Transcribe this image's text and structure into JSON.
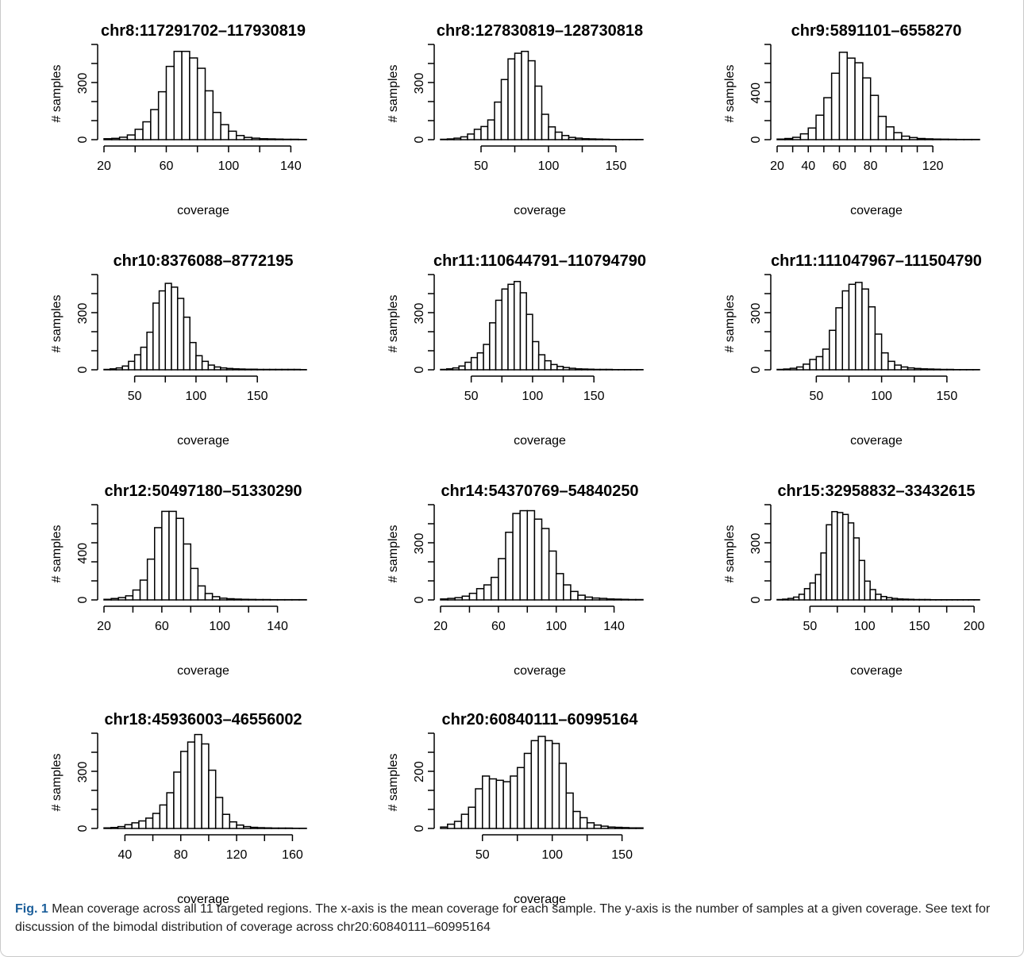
{
  "chart_data": [
    {
      "type": "bar",
      "title": "chr8:117291702–117930819",
      "xlabel": "coverage",
      "ylabel": "# samples",
      "x_range": [
        20,
        150
      ],
      "x_ticks": [
        20,
        60,
        100,
        140
      ],
      "y_ticks": [
        0,
        300
      ],
      "y_tick_labels": [
        "0",
        "300"
      ],
      "y_max": 490,
      "bin_width": 5,
      "bin_start": 20,
      "values": [
        5,
        7,
        13,
        25,
        55,
        95,
        160,
        255,
        390,
        470,
        470,
        435,
        380,
        260,
        145,
        80,
        45,
        22,
        12,
        8,
        5,
        4,
        3,
        2,
        2,
        1
      ]
    },
    {
      "type": "bar",
      "title": "chr8:127830819–128730818",
      "xlabel": "coverage",
      "ylabel": "# samples",
      "x_range": [
        20,
        170
      ],
      "x_ticks": [
        50,
        100,
        150
      ],
      "y_ticks": [
        0,
        300
      ],
      "y_tick_labels": [
        "0",
        "300"
      ],
      "y_max": 490,
      "bin_width": 5,
      "bin_start": 20,
      "values": [
        2,
        4,
        8,
        15,
        30,
        55,
        70,
        105,
        200,
        320,
        430,
        460,
        470,
        420,
        285,
        135,
        68,
        40,
        22,
        12,
        8,
        5,
        4,
        3,
        2,
        1,
        1,
        1,
        1,
        1
      ]
    },
    {
      "type": "bar",
      "title": "chr9:5891101–6558270",
      "xlabel": "coverage",
      "ylabel": "# samples",
      "x_range": [
        20,
        150
      ],
      "x_ticks": [
        20,
        40,
        60,
        80,
        120
      ],
      "y_ticks": [
        0,
        400
      ],
      "y_tick_labels": [
        "0",
        "400"
      ],
      "y_max": 790,
      "bin_width": 5,
      "bin_start": 20,
      "values": [
        5,
        10,
        20,
        50,
        100,
        210,
        360,
        570,
        750,
        700,
        660,
        530,
        380,
        200,
        110,
        60,
        30,
        18,
        10,
        7,
        5,
        4,
        3,
        2,
        2,
        2
      ]
    },
    {
      "type": "bar",
      "title": "chr10:8376088–8772195",
      "xlabel": "coverage",
      "ylabel": "# samples",
      "x_range": [
        25,
        190
      ],
      "x_ticks": [
        50,
        100,
        150
      ],
      "y_ticks": [
        0,
        300
      ],
      "y_tick_labels": [
        "0",
        "300"
      ],
      "y_max": 490,
      "bin_width": 5,
      "bin_start": 25,
      "values": [
        2,
        5,
        10,
        20,
        45,
        80,
        120,
        200,
        355,
        420,
        460,
        440,
        380,
        280,
        145,
        75,
        45,
        25,
        15,
        10,
        7,
        5,
        4,
        3,
        3,
        2,
        2,
        2,
        2,
        2,
        2,
        2,
        1
      ]
    },
    {
      "type": "bar",
      "title": "chr11:110644791–110794790",
      "xlabel": "coverage",
      "ylabel": "# samples",
      "x_range": [
        25,
        190
      ],
      "x_ticks": [
        50,
        100,
        150
      ],
      "y_ticks": [
        0,
        300
      ],
      "y_tick_labels": [
        "0",
        "300"
      ],
      "y_max": 490,
      "bin_width": 5,
      "bin_start": 25,
      "values": [
        2,
        5,
        10,
        20,
        40,
        65,
        90,
        135,
        250,
        370,
        430,
        455,
        470,
        410,
        295,
        150,
        80,
        48,
        28,
        18,
        12,
        8,
        5,
        4,
        3,
        2,
        2,
        2,
        1,
        1,
        1,
        1,
        1
      ]
    },
    {
      "type": "bar",
      "title": "chr11:111047967–111504790",
      "xlabel": "coverage",
      "ylabel": "# samples",
      "x_range": [
        20,
        175
      ],
      "x_ticks": [
        50,
        100,
        150
      ],
      "y_ticks": [
        0,
        300
      ],
      "y_tick_labels": [
        "0",
        "300"
      ],
      "y_max": 490,
      "bin_width": 5,
      "bin_start": 20,
      "values": [
        2,
        4,
        8,
        15,
        30,
        55,
        70,
        110,
        210,
        330,
        420,
        455,
        465,
        430,
        335,
        190,
        90,
        45,
        25,
        15,
        10,
        7,
        5,
        4,
        3,
        2,
        2,
        1,
        1,
        1,
        1
      ]
    },
    {
      "type": "bar",
      "title": "chr12:50497180–51330290",
      "xlabel": "coverage",
      "ylabel": "# samples",
      "x_range": [
        20,
        160
      ],
      "x_ticks": [
        20,
        60,
        100,
        140
      ],
      "y_ticks": [
        0,
        400
      ],
      "y_tick_labels": [
        "0",
        "400"
      ],
      "y_max": 790,
      "bin_width": 5,
      "bin_start": 20,
      "values": [
        5,
        12,
        20,
        35,
        85,
        170,
        350,
        620,
        760,
        760,
        700,
        480,
        270,
        120,
        55,
        28,
        15,
        10,
        7,
        5,
        4,
        3,
        3,
        2,
        2,
        2,
        2,
        2
      ]
    },
    {
      "type": "bar",
      "title": "chr14:54370769–54840250",
      "xlabel": "coverage",
      "ylabel": "# samples",
      "x_range": [
        20,
        160
      ],
      "x_ticks": [
        20,
        60,
        100,
        140
      ],
      "y_ticks": [
        0,
        300
      ],
      "y_tick_labels": [
        "0",
        "300"
      ],
      "y_max": 490,
      "bin_width": 5,
      "bin_start": 20,
      "values": [
        5,
        8,
        12,
        20,
        35,
        60,
        80,
        120,
        220,
        360,
        460,
        475,
        475,
        430,
        380,
        260,
        140,
        80,
        45,
        25,
        15,
        10,
        8,
        5,
        4,
        3,
        2,
        2
      ]
    },
    {
      "type": "bar",
      "title": "chr15:32958832–33432615",
      "xlabel": "coverage",
      "ylabel": "# samples",
      "x_range": [
        20,
        205
      ],
      "x_ticks": [
        50,
        100,
        150,
        200
      ],
      "y_ticks": [
        0,
        300
      ],
      "y_tick_labels": [
        "0",
        "300"
      ],
      "y_max": 490,
      "bin_width": 5,
      "bin_start": 20,
      "values": [
        2,
        4,
        8,
        15,
        30,
        60,
        90,
        135,
        250,
        400,
        470,
        465,
        455,
        410,
        330,
        210,
        100,
        55,
        30,
        18,
        12,
        8,
        5,
        4,
        3,
        2,
        2,
        2,
        1,
        1,
        1,
        1,
        1,
        1,
        1,
        1,
        1
      ]
    },
    {
      "type": "bar",
      "title": "chr18:45936003–46556002",
      "xlabel": "coverage",
      "ylabel": "# samples",
      "x_range": [
        25,
        170
      ],
      "x_ticks": [
        40,
        80,
        120,
        160
      ],
      "y_ticks": [
        0,
        300
      ],
      "y_tick_labels": [
        "0",
        "300"
      ],
      "y_max": 490,
      "bin_width": 5,
      "bin_start": 25,
      "values": [
        3,
        5,
        10,
        20,
        30,
        40,
        55,
        80,
        125,
        190,
        300,
        410,
        460,
        500,
        450,
        310,
        165,
        75,
        35,
        18,
        10,
        6,
        4,
        3,
        2,
        2,
        2,
        1,
        1
      ]
    },
    {
      "type": "bar",
      "title": "chr20:60840111–60995164",
      "xlabel": "coverage",
      "ylabel": "# samples",
      "x_range": [
        20,
        165
      ],
      "x_ticks": [
        50,
        100,
        150
      ],
      "y_ticks": [
        0,
        200
      ],
      "y_tick_labels": [
        "0",
        "200"
      ],
      "y_max": 325,
      "bin_width": 5,
      "bin_start": 20,
      "values": [
        5,
        15,
        25,
        50,
        75,
        140,
        185,
        175,
        170,
        165,
        185,
        215,
        265,
        310,
        325,
        310,
        300,
        230,
        125,
        60,
        38,
        20,
        12,
        8,
        5,
        4,
        3,
        2,
        2
      ]
    }
  ],
  "caption": {
    "label": "Fig. 1",
    "text": " Mean coverage across all 11 targeted regions. The x-axis is the mean coverage for each sample. The y-axis is the number of samples at a given coverage. See text for discussion of the bimodal distribution of coverage across chr20:60840111–60995164"
  }
}
